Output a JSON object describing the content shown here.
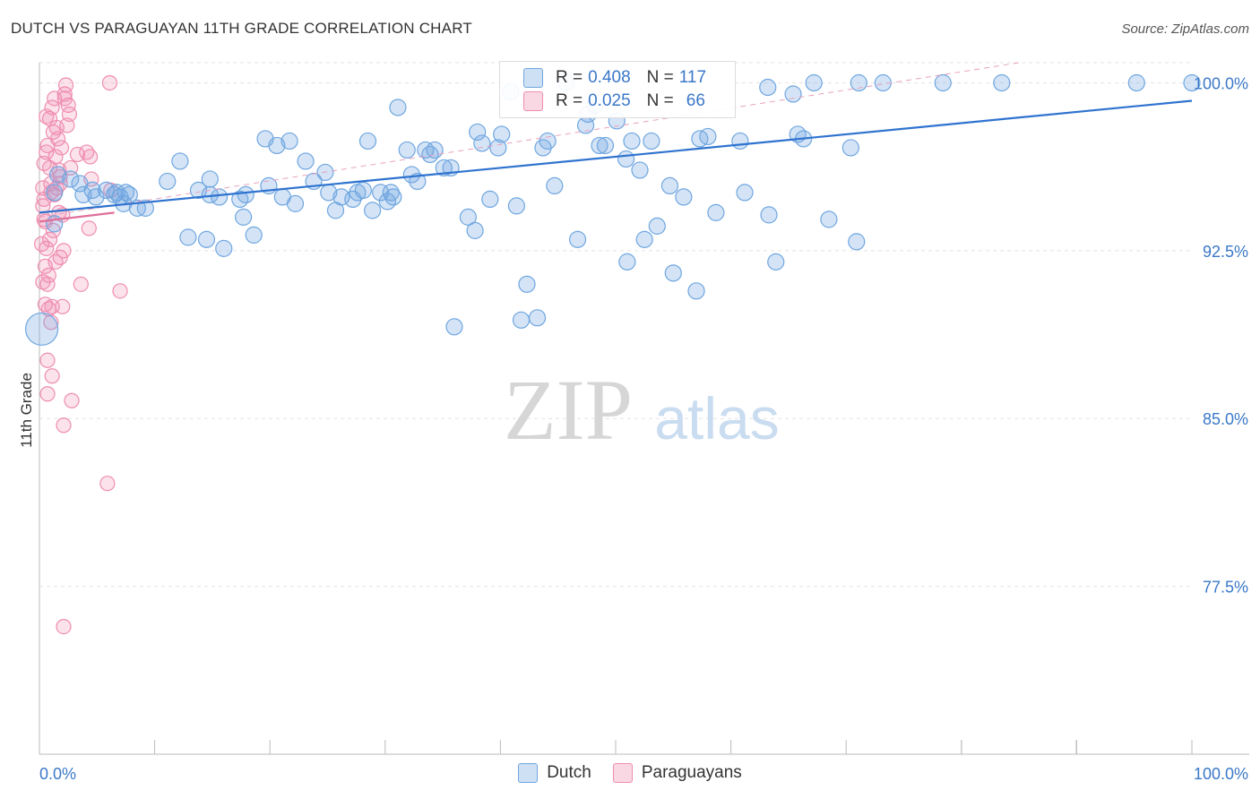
{
  "title": "DUTCH VS PARAGUAYAN 11TH GRADE CORRELATION CHART",
  "source": "Source: ZipAtlas.com",
  "colors": {
    "blue": "#6fa6e0",
    "blue_fill": "rgba(111,166,224,0.30)",
    "blue_line": "#2f73cf",
    "pink": "#ef8db0",
    "pink_fill": "rgba(239,141,176,0.25)",
    "pink_line": "#e06f9a",
    "axis_text": "#3b78c8",
    "grid": "#e3e3e3"
  },
  "legend": {
    "rows": [
      {
        "r_label": "R =",
        "r_value": "0.408",
        "n_label": "N =",
        "n_value": "117"
      },
      {
        "r_label": "R =",
        "r_value": "0.025",
        "n_label": "N =",
        "n_value": "66"
      }
    ]
  },
  "bottom_legend": {
    "dutch": "Dutch",
    "paraguayans": "Paraguayans"
  },
  "watermark": {
    "zip": "ZIP",
    "atlas": "atlas"
  },
  "chart_data": {
    "type": "scatter",
    "title": "DUTCH VS PARAGUAYAN 11TH GRADE CORRELATION CHART",
    "xlabel": "",
    "ylabel": "11th Grade",
    "xlim": [
      0,
      100
    ],
    "ylim": [
      70,
      100.9
    ],
    "x_tick_labels": [
      "0.0%",
      "100.0%"
    ],
    "y_ticks": [
      77.5,
      85.0,
      92.5,
      100.0
    ],
    "y_tick_labels": [
      "77.5%",
      "85.0%",
      "92.5%",
      "100.0%"
    ],
    "grid": true,
    "legend_position": "top-center",
    "series": [
      {
        "name": "Dutch",
        "color": "#6fa6e0",
        "trend": {
          "x": [
            0,
            100
          ],
          "y": [
            94.2,
            99.2
          ]
        },
        "points": [
          [
            0.2,
            89.0
          ],
          [
            1.3,
            93.7
          ],
          [
            1.3,
            95.1
          ],
          [
            1.6,
            95.9
          ],
          [
            2.7,
            95.7
          ],
          [
            3.5,
            95.5
          ],
          [
            3.8,
            95.0
          ],
          [
            4.6,
            95.2
          ],
          [
            4.9,
            94.9
          ],
          [
            5.8,
            95.2
          ],
          [
            6.5,
            95.0
          ],
          [
            6.7,
            95.1
          ],
          [
            7.3,
            94.6
          ],
          [
            7.5,
            95.1
          ],
          [
            8.5,
            94.4
          ],
          [
            9.2,
            94.4
          ],
          [
            7.8,
            95.0
          ],
          [
            7.0,
            94.9
          ],
          [
            12.2,
            96.5
          ],
          [
            11.1,
            95.6
          ],
          [
            12.9,
            93.1
          ],
          [
            13.8,
            95.2
          ],
          [
            14.5,
            93.0
          ],
          [
            14.8,
            95.7
          ],
          [
            14.8,
            95.0
          ],
          [
            15.6,
            94.9
          ],
          [
            16.0,
            92.6
          ],
          [
            17.4,
            94.8
          ],
          [
            17.7,
            94.0
          ],
          [
            17.9,
            95.0
          ],
          [
            18.6,
            93.2
          ],
          [
            19.6,
            97.5
          ],
          [
            20.6,
            97.2
          ],
          [
            19.9,
            95.4
          ],
          [
            21.1,
            94.9
          ],
          [
            21.7,
            97.4
          ],
          [
            22.2,
            94.6
          ],
          [
            23.1,
            96.5
          ],
          [
            23.8,
            95.6
          ],
          [
            24.8,
            96.0
          ],
          [
            25.1,
            95.1
          ],
          [
            25.7,
            94.3
          ],
          [
            26.2,
            94.9
          ],
          [
            27.2,
            94.8
          ],
          [
            27.6,
            95.1
          ],
          [
            28.1,
            95.2
          ],
          [
            28.5,
            97.4
          ],
          [
            28.9,
            94.3
          ],
          [
            29.6,
            95.1
          ],
          [
            30.2,
            94.7
          ],
          [
            30.5,
            95.1
          ],
          [
            30.7,
            94.9
          ],
          [
            31.1,
            98.9
          ],
          [
            31.9,
            97.0
          ],
          [
            32.3,
            95.9
          ],
          [
            32.8,
            95.6
          ],
          [
            33.5,
            97.0
          ],
          [
            33.9,
            96.8
          ],
          [
            34.3,
            97.0
          ],
          [
            35.1,
            96.2
          ],
          [
            35.7,
            96.2
          ],
          [
            36.0,
            89.1
          ],
          [
            37.2,
            94.0
          ],
          [
            37.8,
            93.4
          ],
          [
            38.0,
            97.8
          ],
          [
            38.4,
            97.3
          ],
          [
            39.1,
            94.8
          ],
          [
            39.8,
            97.1
          ],
          [
            40.1,
            97.7
          ],
          [
            40.9,
            99.6
          ],
          [
            41.4,
            94.5
          ],
          [
            41.8,
            89.4
          ],
          [
            42.3,
            91.0
          ],
          [
            43.2,
            89.5
          ],
          [
            43.7,
            97.1
          ],
          [
            44.1,
            97.4
          ],
          [
            44.7,
            95.4
          ],
          [
            45.7,
            100.0
          ],
          [
            46.7,
            93.0
          ],
          [
            47.4,
            98.1
          ],
          [
            47.6,
            98.6
          ],
          [
            48.2,
            99.0
          ],
          [
            48.6,
            97.2
          ],
          [
            49.1,
            97.2
          ],
          [
            50.1,
            98.3
          ],
          [
            51.0,
            92.0
          ],
          [
            51.4,
            97.4
          ],
          [
            52.1,
            96.1
          ],
          [
            52.5,
            93.0
          ],
          [
            53.1,
            97.4
          ],
          [
            53.6,
            93.6
          ],
          [
            54.7,
            95.4
          ],
          [
            55.0,
            91.5
          ],
          [
            55.9,
            94.9
          ],
          [
            57.0,
            90.7
          ],
          [
            57.3,
            97.5
          ],
          [
            58.0,
            97.6
          ],
          [
            58.7,
            94.2
          ],
          [
            60.8,
            97.4
          ],
          [
            61.2,
            95.1
          ],
          [
            63.2,
            99.8
          ],
          [
            63.3,
            94.1
          ],
          [
            63.9,
            92.0
          ],
          [
            65.4,
            99.5
          ],
          [
            65.8,
            97.7
          ],
          [
            66.3,
            97.5
          ],
          [
            67.2,
            100.0
          ],
          [
            68.5,
            93.9
          ],
          [
            70.4,
            97.1
          ],
          [
            70.9,
            92.9
          ],
          [
            71.1,
            100.0
          ],
          [
            73.2,
            100.0
          ],
          [
            78.4,
            100.0
          ],
          [
            83.5,
            100.0
          ],
          [
            95.2,
            100.0
          ],
          [
            100.0,
            100.0
          ],
          [
            50.9,
            96.6
          ]
        ]
      },
      {
        "name": "Paraguayans",
        "color": "#ef8db0",
        "trend": {
          "x": [
            0,
            6.5
          ],
          "y": [
            93.8,
            94.2
          ]
        },
        "points": [
          [
            0.2,
            92.8
          ],
          [
            0.3,
            91.1
          ],
          [
            0.3,
            95.3
          ],
          [
            0.4,
            94.8
          ],
          [
            0.4,
            93.9
          ],
          [
            0.5,
            90.1
          ],
          [
            0.5,
            91.8
          ],
          [
            0.6,
            96.9
          ],
          [
            0.6,
            92.6
          ],
          [
            0.7,
            91.0
          ],
          [
            0.7,
            87.6
          ],
          [
            0.7,
            86.1
          ],
          [
            0.8,
            89.9
          ],
          [
            0.9,
            96.2
          ],
          [
            0.9,
            98.4
          ],
          [
            1.0,
            95.5
          ],
          [
            1.0,
            95.1
          ],
          [
            1.1,
            90.0
          ],
          [
            1.1,
            86.9
          ],
          [
            1.2,
            93.4
          ],
          [
            1.2,
            97.8
          ],
          [
            1.3,
            99.3
          ],
          [
            1.4,
            96.7
          ],
          [
            1.5,
            98.0
          ],
          [
            1.6,
            97.5
          ],
          [
            1.7,
            94.2
          ],
          [
            1.8,
            95.8
          ],
          [
            1.8,
            92.2
          ],
          [
            1.9,
            97.1
          ],
          [
            2.0,
            90.0
          ],
          [
            2.1,
            84.7
          ],
          [
            2.1,
            92.5
          ],
          [
            2.2,
            99.3
          ],
          [
            2.2,
            99.5
          ],
          [
            2.4,
            98.1
          ],
          [
            2.5,
            99.0
          ],
          [
            2.6,
            98.6
          ],
          [
            2.7,
            96.2
          ],
          [
            2.8,
            85.8
          ],
          [
            3.3,
            96.8
          ],
          [
            3.6,
            91.0
          ],
          [
            4.1,
            96.9
          ],
          [
            4.3,
            93.5
          ],
          [
            4.4,
            96.7
          ],
          [
            4.5,
            95.7
          ],
          [
            6.2,
            95.2
          ],
          [
            5.9,
            82.1
          ],
          [
            7.0,
            90.7
          ],
          [
            6.1,
            100.0
          ],
          [
            2.1,
            75.7
          ],
          [
            0.8,
            91.4
          ],
          [
            0.5,
            93.8
          ],
          [
            1.5,
            95.3
          ],
          [
            0.6,
            98.5
          ],
          [
            2.3,
            99.9
          ],
          [
            1.7,
            96.1
          ],
          [
            0.9,
            93.0
          ],
          [
            1.3,
            95.0
          ],
          [
            0.4,
            96.4
          ],
          [
            2.0,
            94.1
          ],
          [
            1.0,
            89.3
          ],
          [
            0.7,
            97.2
          ],
          [
            1.4,
            92.0
          ],
          [
            0.3,
            94.5
          ],
          [
            1.1,
            98.9
          ],
          [
            1.8,
            95.5
          ]
        ]
      }
    ]
  }
}
